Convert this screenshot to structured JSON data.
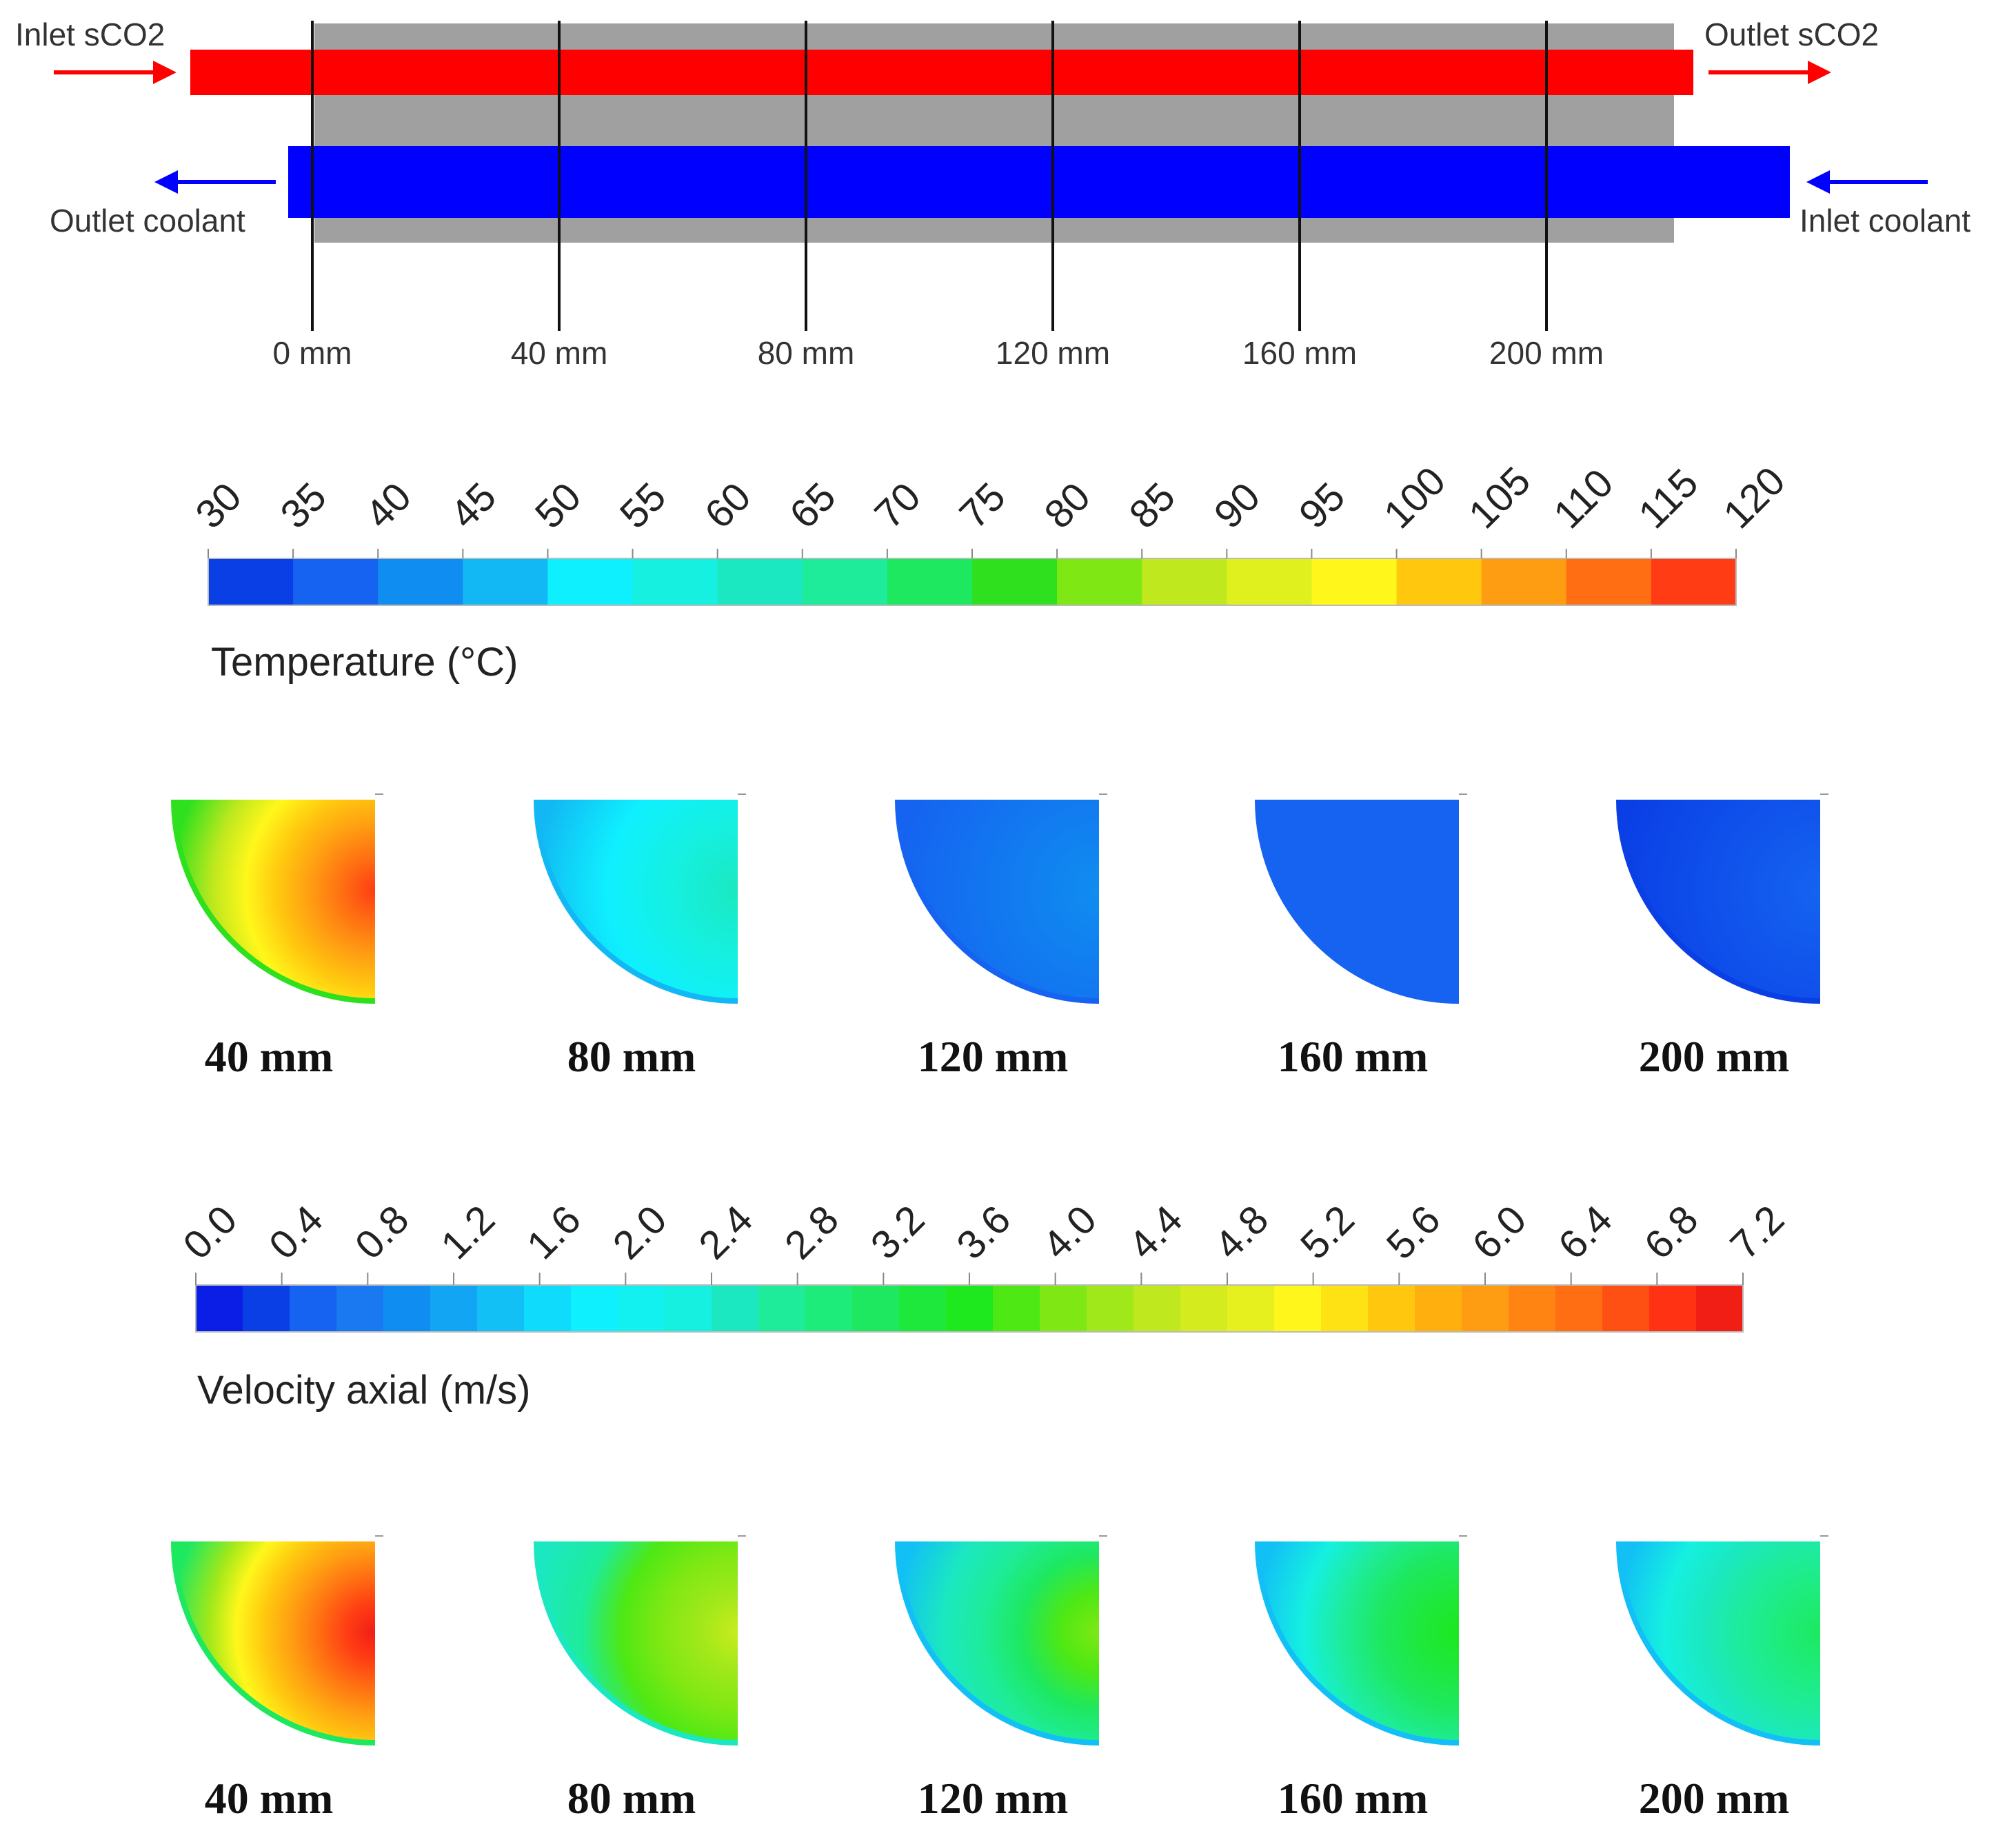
{
  "schematic": {
    "inlet_sco2_label": "Inlet sCO2",
    "outlet_sco2_label": "Outlet sCO2",
    "outlet_coolant_label": "Outlet coolant",
    "inlet_coolant_label": "Inlet coolant",
    "hot_channel_color": "#ff0000",
    "cold_channel_color": "#0000ff",
    "wall_color": "#a0a0a0",
    "sco2_arrow_color": "#ff0000",
    "coolant_arrow_color": "#0000ff",
    "stations": [
      {
        "label": "0 mm",
        "position_mm": 0
      },
      {
        "label": "40 mm",
        "position_mm": 40
      },
      {
        "label": "80 mm",
        "position_mm": 80
      },
      {
        "label": "120 mm",
        "position_mm": 120
      },
      {
        "label": "160 mm",
        "position_mm": 160
      },
      {
        "label": "200 mm",
        "position_mm": 200
      }
    ]
  },
  "temperature_legend": {
    "title": "Temperature (°C)",
    "ticks": [
      "30",
      "35",
      "40",
      "45",
      "50",
      "55",
      "60",
      "65",
      "70",
      "75",
      "80",
      "85",
      "90",
      "95",
      "100",
      "105",
      "110",
      "115",
      "120"
    ],
    "colors": [
      "#0a3fe6",
      "#1563f0",
      "#0f8df0",
      "#12b8f3",
      "#0ff0ff",
      "#15f0e0",
      "#1be8c0",
      "#1eec9a",
      "#1ee860",
      "#2ee01e",
      "#7fe814",
      "#bfe81e",
      "#dff01e",
      "#fff71b",
      "#ffc80f",
      "#ff9d12",
      "#ff6e12",
      "#ff3c14"
    ]
  },
  "temperature_sections": [
    {
      "label": "40 mm",
      "wall_color": "#2ee01e",
      "core_color": "#ff3c14",
      "stops": [
        "#bfe81e",
        "#fff71b",
        "#ffc80f",
        "#ff9d12",
        "#ff6e12",
        "#ff3c14"
      ]
    },
    {
      "label": "80 mm",
      "wall_color": "#12b8f3",
      "core_color": "#1be8c0",
      "stops": [
        "#0ff0ff",
        "#15f0e0",
        "#1be8c0"
      ]
    },
    {
      "label": "120 mm",
      "wall_color": "#1563f0",
      "core_color": "#0f8df0",
      "stops": [
        "#0f8df0"
      ]
    },
    {
      "label": "160 mm",
      "wall_color": "#1563f0",
      "core_color": "#1563f0",
      "stops": [
        "#1563f0"
      ]
    },
    {
      "label": "200 mm",
      "wall_color": "#0a3fe6",
      "core_color": "#1563f0",
      "stops": [
        "#1563f0"
      ]
    }
  ],
  "velocity_legend": {
    "title": "Velocity axial (m/s)",
    "ticks": [
      "0.0",
      "0.4",
      "0.8",
      "1.2",
      "1.6",
      "2.0",
      "2.4",
      "2.8",
      "3.2",
      "3.6",
      "4.0",
      "4.4",
      "4.8",
      "5.2",
      "5.6",
      "6.0",
      "6.4",
      "6.8",
      "7.2"
    ],
    "colors": [
      "#0a1ee6",
      "#0a3fe6",
      "#1563f0",
      "#1a78f0",
      "#0f8df0",
      "#12a5f3",
      "#12c0f5",
      "#0fdcfc",
      "#0ff0ff",
      "#12f0f0",
      "#15f0e0",
      "#1be8c0",
      "#1eec9a",
      "#1eec7a",
      "#1ee860",
      "#1ee83c",
      "#1ee81e",
      "#4ee814",
      "#7fe814",
      "#a0e81a",
      "#bfe81e",
      "#d4ec1e",
      "#e6f01e",
      "#fff71b",
      "#ffe214",
      "#ffc80f",
      "#ffb00f",
      "#ff9d12",
      "#ff8412",
      "#ff6e12",
      "#ff5014",
      "#ff3214",
      "#f01e14"
    ]
  },
  "velocity_sections": [
    {
      "label": "40 mm",
      "wall_color": "#1ee860",
      "core_color": "#f01e14",
      "stops": [
        "#a0e81a",
        "#fff71b",
        "#ffc80f",
        "#ff9d12",
        "#ff6e12",
        "#ff3c14",
        "#f01e14"
      ]
    },
    {
      "label": "80 mm",
      "wall_color": "#1be8c0",
      "core_color": "#c8ec1e",
      "stops": [
        "#1eec9a",
        "#4ee814",
        "#7fe814",
        "#a0e81a",
        "#c8ec1e"
      ]
    },
    {
      "label": "120 mm",
      "wall_color": "#12c0f5",
      "core_color": "#7fe814",
      "stops": [
        "#1be8c0",
        "#1eec9a",
        "#1ee860",
        "#4ee814",
        "#7fe814"
      ]
    },
    {
      "label": "160 mm",
      "wall_color": "#12c0f5",
      "core_color": "#1ee81e",
      "stops": [
        "#15f0e0",
        "#1eec9a",
        "#1ee860",
        "#1ee83c",
        "#1ee81e"
      ]
    },
    {
      "label": "200 mm",
      "wall_color": "#12c0f5",
      "core_color": "#1ee860",
      "stops": [
        "#15f0e0",
        "#1be8c0",
        "#1eec9a",
        "#1eec7a",
        "#1ee860"
      ]
    }
  ]
}
